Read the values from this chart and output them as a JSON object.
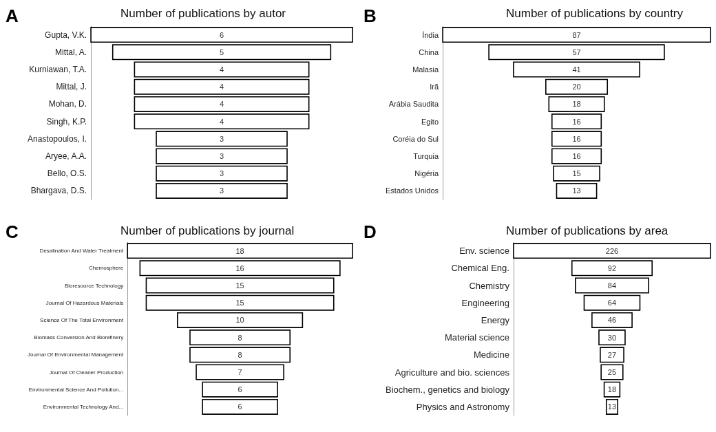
{
  "chart_data": [
    {
      "type": "other",
      "title": "Number of publications by autor",
      "annotations": [
        "A"
      ],
      "categories": [
        "Gupta, V.K.",
        "Mittal, A.",
        "Kurniawan, T.A.",
        "Mittal, J.",
        "Mohan, D.",
        "Singh, K.P.",
        "Anastopoulos, I.",
        "Aryee, A.A.",
        "Bello, O.S.",
        "Bhargava, D.S."
      ],
      "values": [
        6,
        5,
        4,
        4,
        4,
        4,
        3,
        3,
        3,
        3
      ],
      "color": "#ffffff",
      "data_labels": true
    },
    {
      "type": "other",
      "title": "Number of publications by country",
      "annotations": [
        "B"
      ],
      "categories": [
        "Índia",
        "China",
        "Malasia",
        "Irã",
        "Arábia Saudita",
        "Egito",
        "Coréia do Sul",
        "Turquia",
        "Nigéria",
        "Estados Unidos"
      ],
      "values": [
        87,
        57,
        41,
        20,
        18,
        16,
        16,
        16,
        15,
        13
      ],
      "color": "#ffffff",
      "data_labels": true
    },
    {
      "type": "other",
      "title": "Number of publications by journal",
      "annotations": [
        "C"
      ],
      "categories": [
        "Desalination And Water Treatment",
        "Chemosphere",
        "Bioresource Technology",
        "Journal Of Hazardous Materials",
        "Science Of The Total Environment",
        "Biomass Conversion And Biorefinery",
        "Journal Of Environmental Management",
        "Journal Of Cleaner Production",
        "Environmental Science And Pollution...",
        "Environmental Technology And..."
      ],
      "values": [
        18,
        16,
        15,
        15,
        10,
        8,
        8,
        7,
        6,
        6
      ],
      "color": "#ffffff",
      "data_labels": true
    },
    {
      "type": "other",
      "title": "Number of publications by area",
      "annotations": [
        "D"
      ],
      "categories": [
        "Env. science",
        "Chemical Eng.",
        "Chemistry",
        "Engineering",
        "Energy",
        "Material science",
        "Medicine",
        "Agriculture and bio. sciences",
        "Biochem., genetics and biology",
        "Physics and Astronomy"
      ],
      "values": [
        226,
        92,
        84,
        64,
        46,
        30,
        27,
        25,
        18,
        13
      ],
      "color": "#ffffff",
      "data_labels": true
    }
  ]
}
